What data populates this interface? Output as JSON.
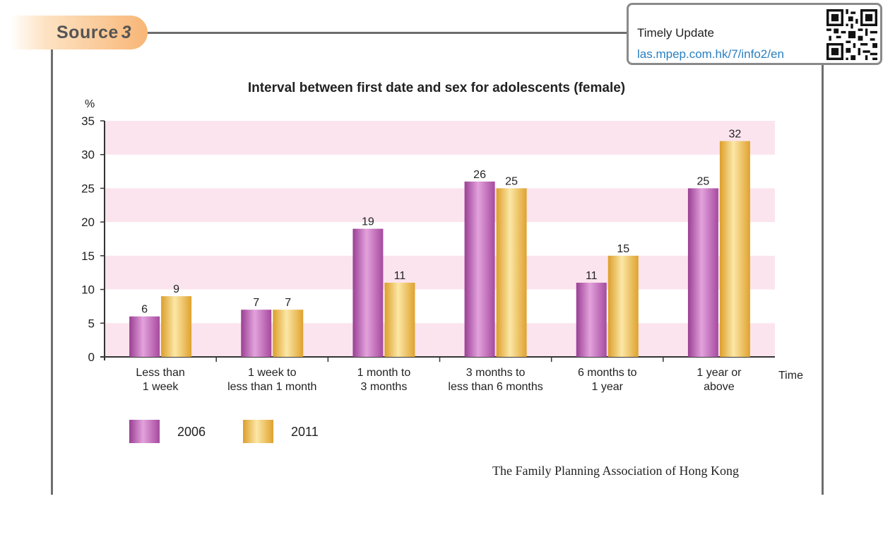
{
  "source": {
    "label": "Source",
    "number": "3"
  },
  "update_box": {
    "label": "Timely Update",
    "link": "las.mpep.com.hk/7/info2/en",
    "qr_icon": "qr-code-icon"
  },
  "credit": "The Family Planning Association of Hong Kong",
  "colors": {
    "series_2006": "#c168b8",
    "series_2011": "#f2c24e",
    "band": "#fbe4ee"
  },
  "chart_data": {
    "type": "bar",
    "title": "Interval between first date and sex for adolescents (female)",
    "ylabel": "%",
    "xlabel": "Time",
    "ylim": [
      0,
      35
    ],
    "yticks": [
      0,
      5,
      10,
      15,
      20,
      25,
      30,
      35
    ],
    "categories": [
      [
        "Less than",
        "1 week"
      ],
      [
        "1 week to",
        "less than 1 month"
      ],
      [
        "1 month to",
        "3 months"
      ],
      [
        "3 months to",
        "less than 6 months"
      ],
      [
        "6 months to",
        "1 year"
      ],
      [
        "1 year or",
        "above"
      ]
    ],
    "series": [
      {
        "name": "2006",
        "values": [
          6,
          7,
          19,
          26,
          11,
          25
        ]
      },
      {
        "name": "2011",
        "values": [
          9,
          7,
          11,
          25,
          15,
          32
        ]
      }
    ],
    "legend_position": "bottom-left"
  }
}
